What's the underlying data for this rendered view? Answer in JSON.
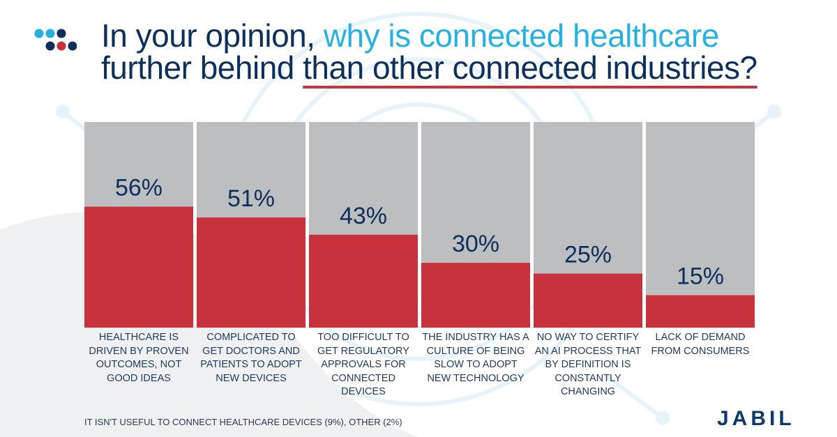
{
  "title": {
    "part1": "In your opinion, ",
    "part2": "why is connected healthcare",
    "part3": "further behind ",
    "part4": "than other connected industries?"
  },
  "chart_data": {
    "type": "bar",
    "categories": [
      "HEALTHCARE IS DRIVEN BY PROVEN OUTCOMES, NOT GOOD IDEAS",
      "COMPLICATED TO GET DOCTORS AND PATIENTS TO ADOPT NEW DEVICES",
      "TOO DIFFICULT TO GET REGULATORY APPROVALS FOR CONNECTED DEVICES",
      "THE INDUSTRY HAS A CULTURE OF BEING SLOW TO ADOPT NEW TECHNOLOGY",
      "NO WAY TO CERTIFY AN AI PROCESS THAT BY DEFINITION IS CONSTANTLY CHANGING",
      "LACK OF DEMAND FROM CONSUMERS"
    ],
    "values": [
      56,
      51,
      43,
      30,
      25,
      15
    ],
    "value_labels": [
      "56%",
      "51%",
      "43%",
      "30%",
      "25%",
      "15%"
    ],
    "ylim": [
      0,
      100
    ],
    "grid": false,
    "bar_color": "#c8323d",
    "background_bar_color": "#bcbec0",
    "label_color": "#0d2f5c"
  },
  "footnote": "IT ISN'T USEFUL TO CONNECT HEALTHCARE DEVICES (9%), OTHER (2%)",
  "brand": "JABIL",
  "colors": {
    "navy": "#0d2f5c",
    "accent_blue": "#27b1e2",
    "accent_red": "#c8323d"
  }
}
